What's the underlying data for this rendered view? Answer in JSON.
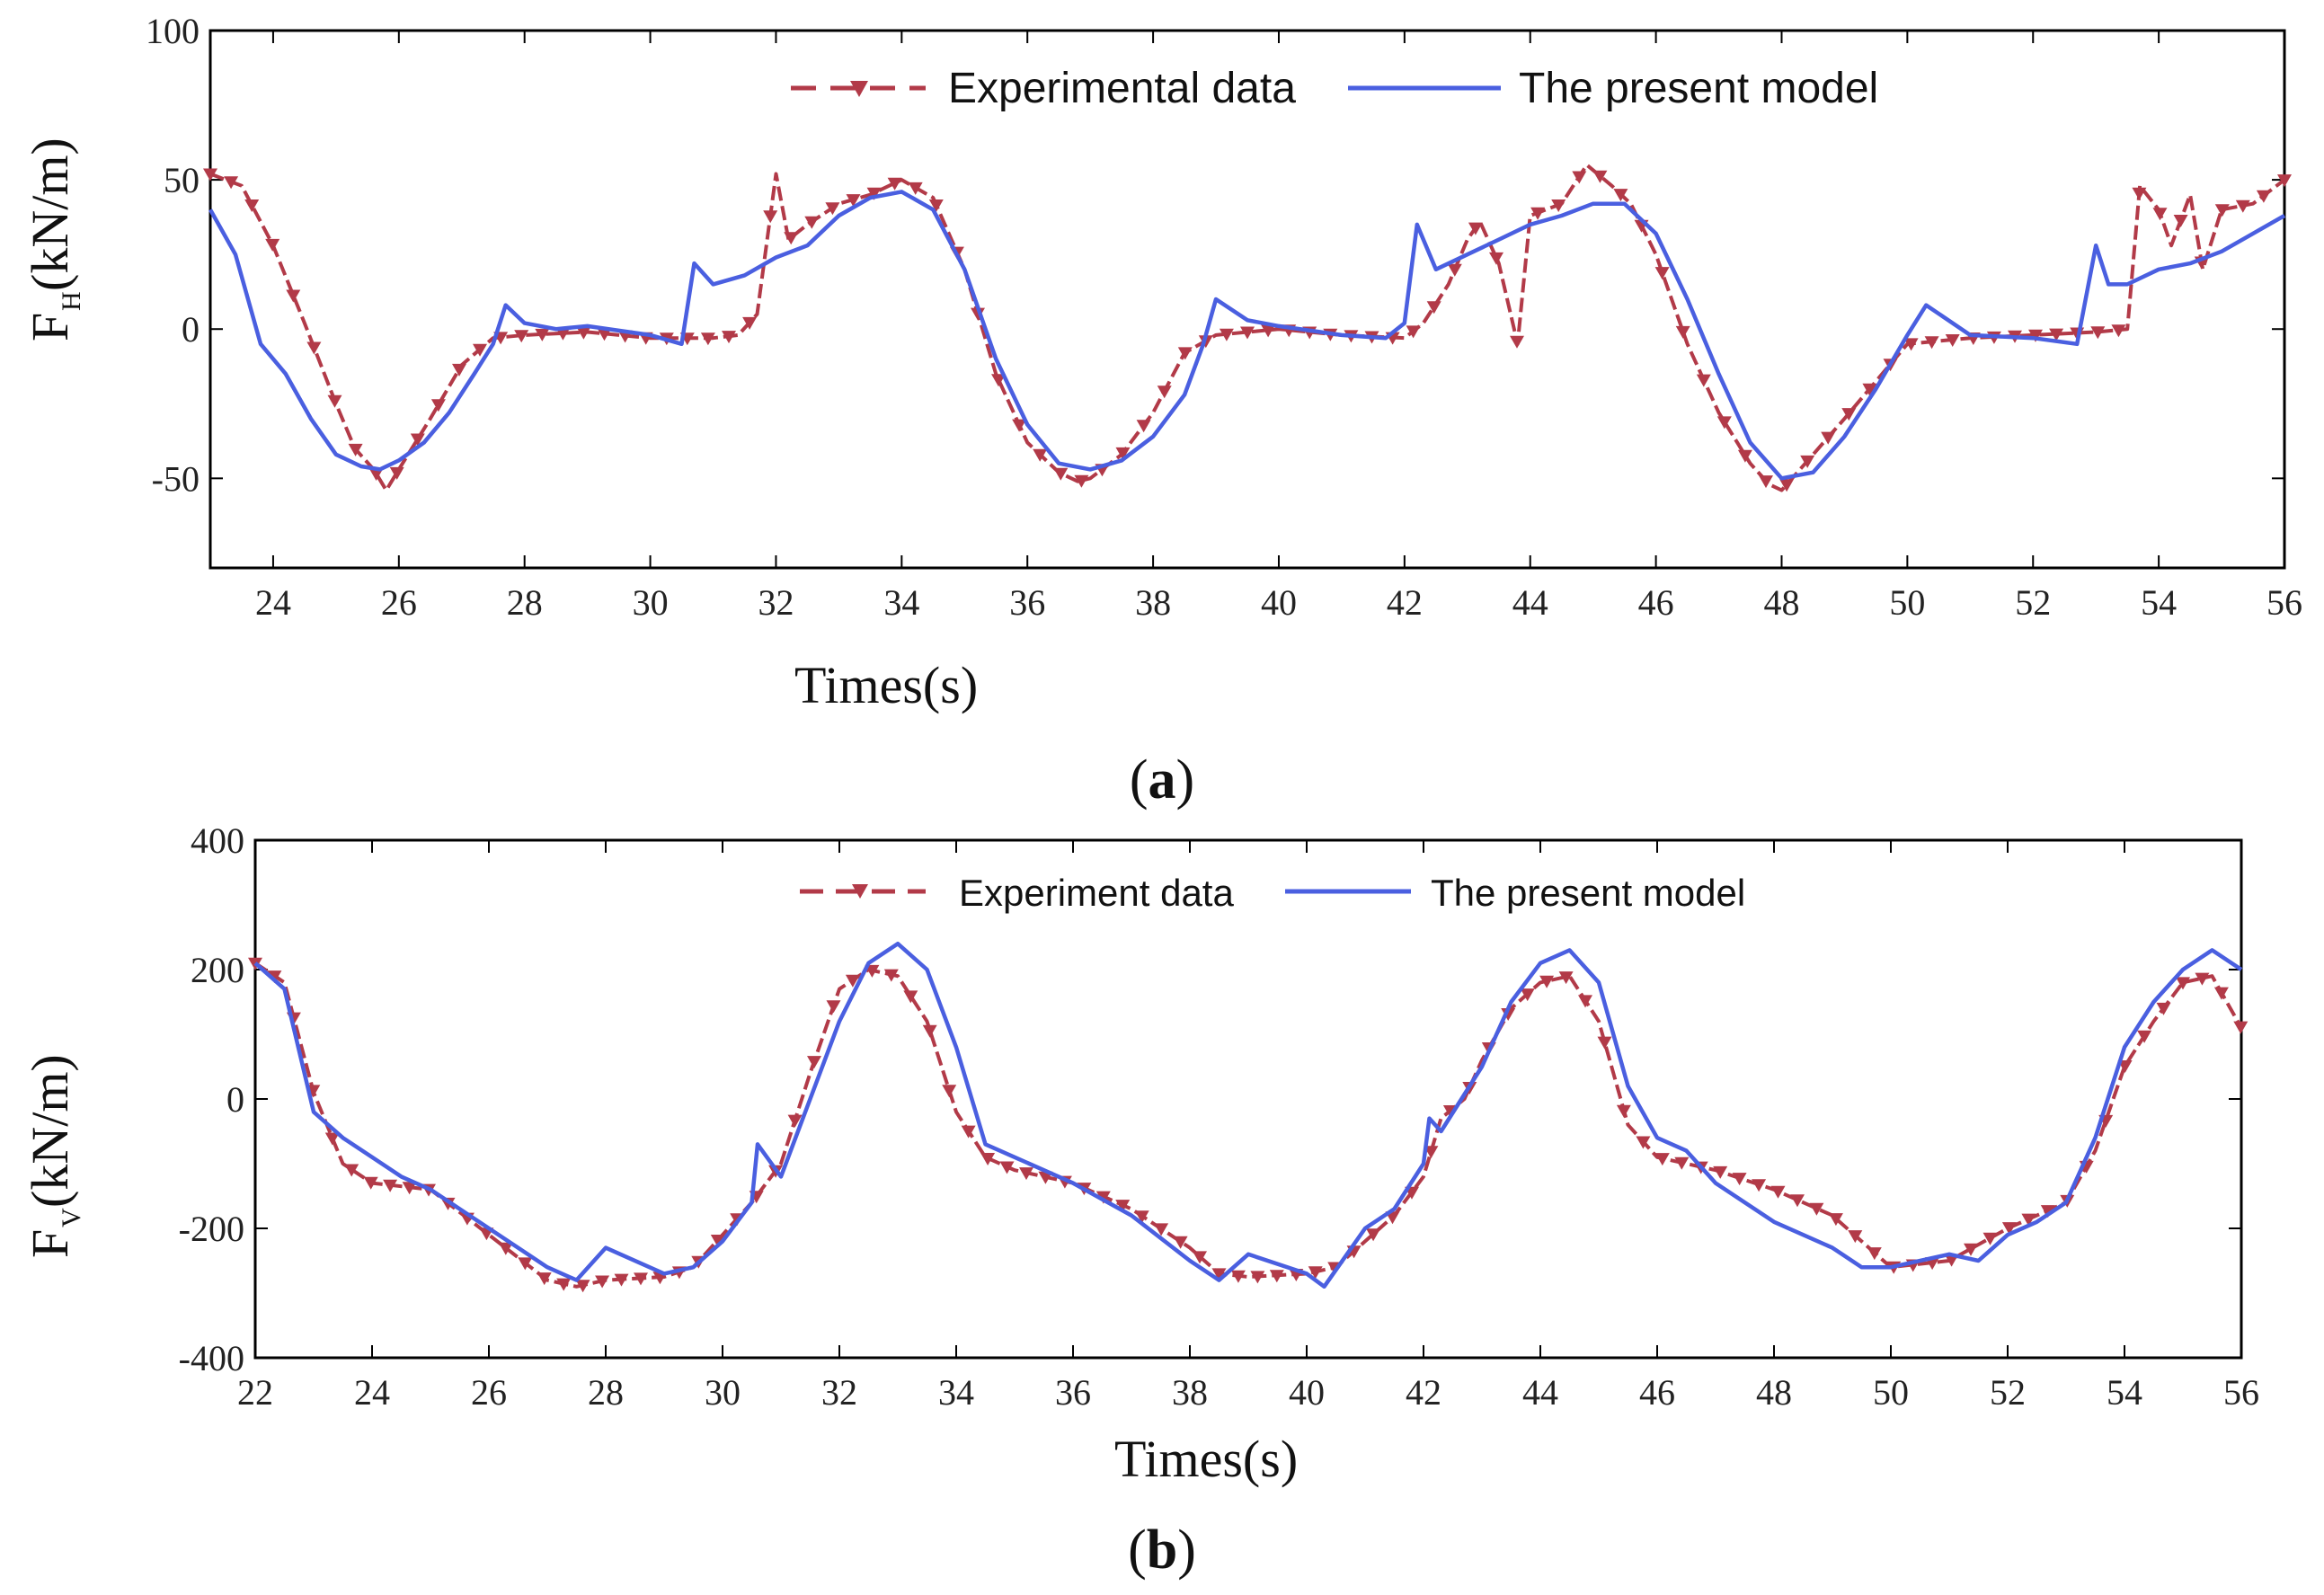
{
  "colors": {
    "experimental": "#B23A48",
    "model": "#4A5FE0",
    "axis": "#000000"
  },
  "chart_data": [
    {
      "type": "line",
      "caption": "(a)",
      "caption_letter": "a",
      "xlabel": "Times(s)",
      "ylabel_main": "F",
      "ylabel_sub": "H",
      "ylabel_unit": "(kN/m)",
      "xlim": [
        23,
        56
      ],
      "ylim": [
        -80,
        100
      ],
      "xticks": [
        24,
        26,
        28,
        30,
        32,
        34,
        36,
        38,
        40,
        42,
        44,
        46,
        48,
        50,
        52,
        54,
        56
      ],
      "yticks": [
        -50,
        0,
        50,
        100
      ],
      "legend": [
        "Experimental data",
        "The present model"
      ],
      "series": [
        {
          "name": "Experimental data",
          "style": "dashed-triangle",
          "x": [
            23,
            23.5,
            24,
            24.5,
            25,
            25.3,
            25.6,
            25.8,
            26,
            26.5,
            27,
            27.5,
            28,
            29,
            30,
            31,
            31.4,
            31.7,
            32,
            32.2,
            32.5,
            33,
            33.5,
            34,
            34.5,
            35,
            35.5,
            36,
            36.5,
            36.8,
            37,
            37.5,
            38,
            38.5,
            39,
            40,
            41,
            42,
            42.3,
            42.7,
            43,
            43.2,
            43.5,
            43.8,
            44,
            44.5,
            44.9,
            45.3,
            45.6,
            46,
            46.5,
            47,
            47.5,
            47.8,
            48,
            48.5,
            49,
            50,
            51,
            52,
            53,
            53.5,
            53.7,
            54,
            54.2,
            54.5,
            54.7,
            55,
            55.5,
            56
          ],
          "y": [
            52,
            48,
            28,
            2,
            -25,
            -40,
            -47,
            -54,
            -47,
            -30,
            -12,
            -3,
            -2,
            -1,
            -3,
            -3,
            -2,
            5,
            52,
            30,
            35,
            42,
            45,
            50,
            44,
            20,
            -15,
            -38,
            -48,
            -51,
            -50,
            -42,
            -28,
            -8,
            -2,
            0,
            -2,
            -3,
            2,
            15,
            30,
            36,
            22,
            -5,
            38,
            42,
            55,
            48,
            42,
            25,
            -5,
            -28,
            -45,
            -52,
            -54,
            -42,
            -30,
            -5,
            -3,
            -2,
            -1,
            0,
            48,
            40,
            28,
            45,
            20,
            40,
            42,
            50
          ]
        },
        {
          "name": "The present model",
          "style": "solid",
          "x": [
            23,
            23.4,
            23.8,
            24.2,
            24.6,
            25,
            25.4,
            25.7,
            26,
            26.4,
            26.8,
            27.2,
            27.5,
            27.7,
            28,
            28.5,
            29,
            30,
            30.5,
            30.7,
            31,
            31.5,
            32,
            32.5,
            33,
            33.5,
            34,
            34.5,
            35,
            35.5,
            36,
            36.5,
            37,
            37.5,
            38,
            38.5,
            38.8,
            39,
            39.5,
            40,
            41,
            41.7,
            42,
            42.2,
            42.5,
            43,
            43.5,
            44,
            44.5,
            45,
            45.5,
            46,
            46.5,
            47,
            47.5,
            48,
            48.5,
            49,
            49.5,
            50,
            50.3,
            51,
            52,
            52.7,
            53,
            53.2,
            53.5,
            54,
            54.5,
            55,
            55.5,
            56
          ],
          "y": [
            40,
            25,
            -5,
            -15,
            -30,
            -42,
            -46,
            -47,
            -44,
            -38,
            -28,
            -15,
            -5,
            8,
            2,
            0,
            1,
            -2,
            -5,
            22,
            15,
            18,
            24,
            28,
            38,
            44,
            46,
            40,
            20,
            -10,
            -32,
            -45,
            -47,
            -44,
            -36,
            -22,
            -5,
            10,
            3,
            1,
            -2,
            -3,
            2,
            35,
            20,
            25,
            30,
            35,
            38,
            42,
            42,
            32,
            10,
            -15,
            -38,
            -50,
            -48,
            -36,
            -20,
            -2,
            8,
            -2,
            -3,
            -5,
            28,
            15,
            15,
            20,
            22,
            26,
            32,
            38
          ]
        }
      ]
    },
    {
      "type": "line",
      "caption": "(b)",
      "caption_letter": "b",
      "xlabel": "Times(s)",
      "ylabel_main": "F",
      "ylabel_sub": "V",
      "ylabel_unit": "(kN/m)",
      "xlim": [
        22,
        56
      ],
      "ylim": [
        -400,
        400
      ],
      "xticks": [
        22,
        24,
        26,
        28,
        30,
        32,
        34,
        36,
        38,
        40,
        42,
        44,
        46,
        48,
        50,
        52,
        54,
        56
      ],
      "yticks": [
        -400,
        -200,
        0,
        200,
        400
      ],
      "legend": [
        "Experiment data",
        "The present model"
      ],
      "series": [
        {
          "name": "Experiment data",
          "style": "dashed-triangle",
          "x": [
            22,
            22.5,
            23,
            23.5,
            24,
            25,
            26,
            27,
            27.5,
            28,
            29,
            29.5,
            30,
            30.5,
            31,
            31.5,
            32,
            32.5,
            33,
            33.5,
            34,
            34.5,
            35,
            36,
            37,
            38,
            38.5,
            39,
            40,
            40.5,
            41,
            41.5,
            42,
            42.3,
            42.7,
            43,
            43.5,
            44,
            44.5,
            45,
            45.5,
            46,
            47,
            48,
            49,
            49.5,
            50,
            51,
            52,
            52.5,
            53,
            53.5,
            54,
            54.5,
            55,
            55.5,
            56
          ],
          "y": [
            210,
            180,
            10,
            -100,
            -130,
            -140,
            -210,
            -280,
            -290,
            -280,
            -275,
            -260,
            -210,
            -160,
            -100,
            40,
            170,
            200,
            190,
            120,
            -20,
            -90,
            -110,
            -130,
            -170,
            -230,
            -270,
            -275,
            -270,
            -260,
            -220,
            -180,
            -120,
            -30,
            0,
            60,
            140,
            180,
            190,
            120,
            -40,
            -90,
            -110,
            -140,
            -180,
            -220,
            -260,
            -250,
            -200,
            -180,
            -160,
            -80,
            50,
            120,
            180,
            190,
            110
          ]
        },
        {
          "name": "The present model",
          "style": "solid",
          "x": [
            22,
            22.5,
            23,
            23.5,
            24,
            24.5,
            25,
            26,
            27,
            27.5,
            28,
            29,
            29.5,
            30,
            30.5,
            30.6,
            31,
            31.5,
            32,
            32.5,
            33,
            33.5,
            34,
            34.5,
            35,
            36,
            37,
            38,
            38.5,
            39,
            40,
            40.3,
            41,
            41.5,
            42,
            42.1,
            42.3,
            43,
            43.5,
            44,
            44.5,
            45,
            45.5,
            46,
            46.5,
            47,
            48,
            49,
            49.5,
            50,
            51,
            51.5,
            52,
            52.5,
            53,
            53.5,
            54,
            54.5,
            55,
            55.5,
            56
          ],
          "y": [
            210,
            170,
            -20,
            -60,
            -90,
            -120,
            -140,
            -200,
            -260,
            -280,
            -230,
            -270,
            -260,
            -220,
            -160,
            -70,
            -120,
            0,
            120,
            210,
            240,
            200,
            80,
            -70,
            -90,
            -130,
            -180,
            -250,
            -280,
            -240,
            -270,
            -290,
            -200,
            -170,
            -100,
            -30,
            -50,
            50,
            150,
            210,
            230,
            180,
            20,
            -60,
            -80,
            -130,
            -190,
            -230,
            -260,
            -260,
            -240,
            -250,
            -210,
            -190,
            -160,
            -60,
            80,
            150,
            200,
            230,
            200
          ]
        }
      ]
    }
  ]
}
